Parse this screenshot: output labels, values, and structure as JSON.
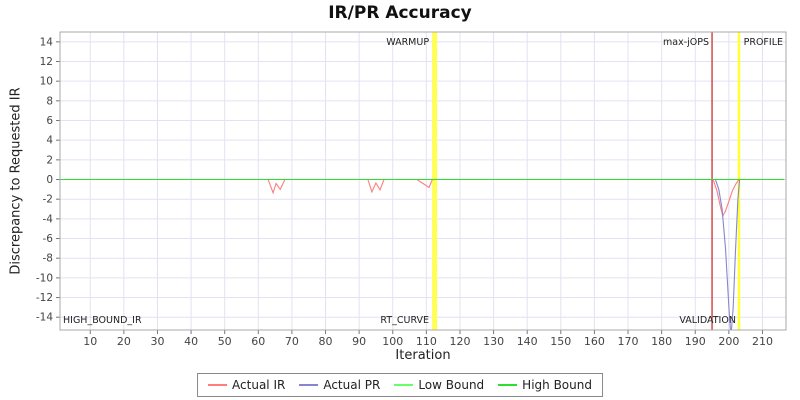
{
  "chart": {
    "title": "IR/PR Accuracy"
  },
  "chart_data": {
    "type": "line",
    "title": "IR/PR Accuracy",
    "xlabel": "Iteration",
    "ylabel": "Discrepancy to Requested IR",
    "xlim": [
      1,
      217
    ],
    "ylim": [
      -15.3,
      15.0
    ],
    "x_ticks": [
      10,
      20,
      30,
      40,
      50,
      60,
      70,
      80,
      90,
      100,
      110,
      120,
      130,
      140,
      150,
      160,
      170,
      180,
      190,
      200,
      210
    ],
    "y_ticks": [
      -14,
      -12,
      -10,
      -8,
      -6,
      -4,
      -2,
      0,
      2,
      4,
      6,
      8,
      10,
      12,
      14
    ],
    "grid": true,
    "legend_position": "bottom",
    "colors": {
      "grid": "#e2e2f2",
      "border": "#a9a9a9",
      "tick": "#777777",
      "tick_label": "#444444",
      "annotation": "#222222"
    },
    "series": [
      {
        "name": "Actual IR",
        "color": "#ff7d7d",
        "points": [
          [
            1,
            0
          ],
          [
            62.9,
            0
          ],
          [
            64.4,
            -1.35
          ],
          [
            65.3,
            -0.4
          ],
          [
            66.5,
            -1.0
          ],
          [
            67.9,
            0
          ],
          [
            92.6,
            0
          ],
          [
            93.8,
            -1.25
          ],
          [
            95,
            -0.35
          ],
          [
            96.2,
            -1.05
          ],
          [
            97.4,
            0
          ],
          [
            107.2,
            0
          ],
          [
            109,
            -0.4
          ],
          [
            110.8,
            -0.8
          ],
          [
            111.8,
            0
          ],
          [
            195.3,
            0
          ],
          [
            196.5,
            -1.2
          ],
          [
            197.5,
            -2.8
          ],
          [
            198.2,
            -3.7
          ],
          [
            199,
            -3.2
          ],
          [
            200,
            -2.2
          ],
          [
            201,
            -1.2
          ],
          [
            202,
            -0.5
          ],
          [
            203,
            0
          ],
          [
            216.5,
            0
          ]
        ]
      },
      {
        "name": "Actual PR",
        "color": "#8585d2",
        "points": [
          [
            1,
            0
          ],
          [
            196,
            0
          ],
          [
            197,
            -1
          ],
          [
            198,
            -3
          ],
          [
            199,
            -7
          ],
          [
            200,
            -13
          ],
          [
            200.6,
            -16
          ],
          [
            201.3,
            -13
          ],
          [
            202,
            -7
          ],
          [
            202.7,
            -2
          ],
          [
            203.2,
            0
          ],
          [
            216.5,
            0
          ]
        ]
      },
      {
        "name": "Low Bound",
        "color": "#66ff66",
        "points": [
          [
            1,
            0
          ],
          [
            216.5,
            0
          ]
        ]
      },
      {
        "name": "High Bound",
        "color": "#2ede2e",
        "points": [
          [
            1,
            0
          ],
          [
            216.5,
            0
          ]
        ]
      }
    ],
    "markers": {
      "band": {
        "x0": 111.7,
        "x1": 113.2,
        "color": "#ffff55",
        "label_top": "WARMUP",
        "label_bottom": "RT_CURVE"
      },
      "lines": [
        {
          "x": 195,
          "color": "#cc4040",
          "width": 1.4,
          "label_top": "max-jOPS"
        },
        {
          "x": 203,
          "color": "#ffff33",
          "width": 2.5,
          "label_bottom": "VALIDATION"
        }
      ],
      "corner_labels": {
        "top_right": "PROFILE",
        "bottom_left": "HIGH_BOUND_IR"
      }
    }
  }
}
